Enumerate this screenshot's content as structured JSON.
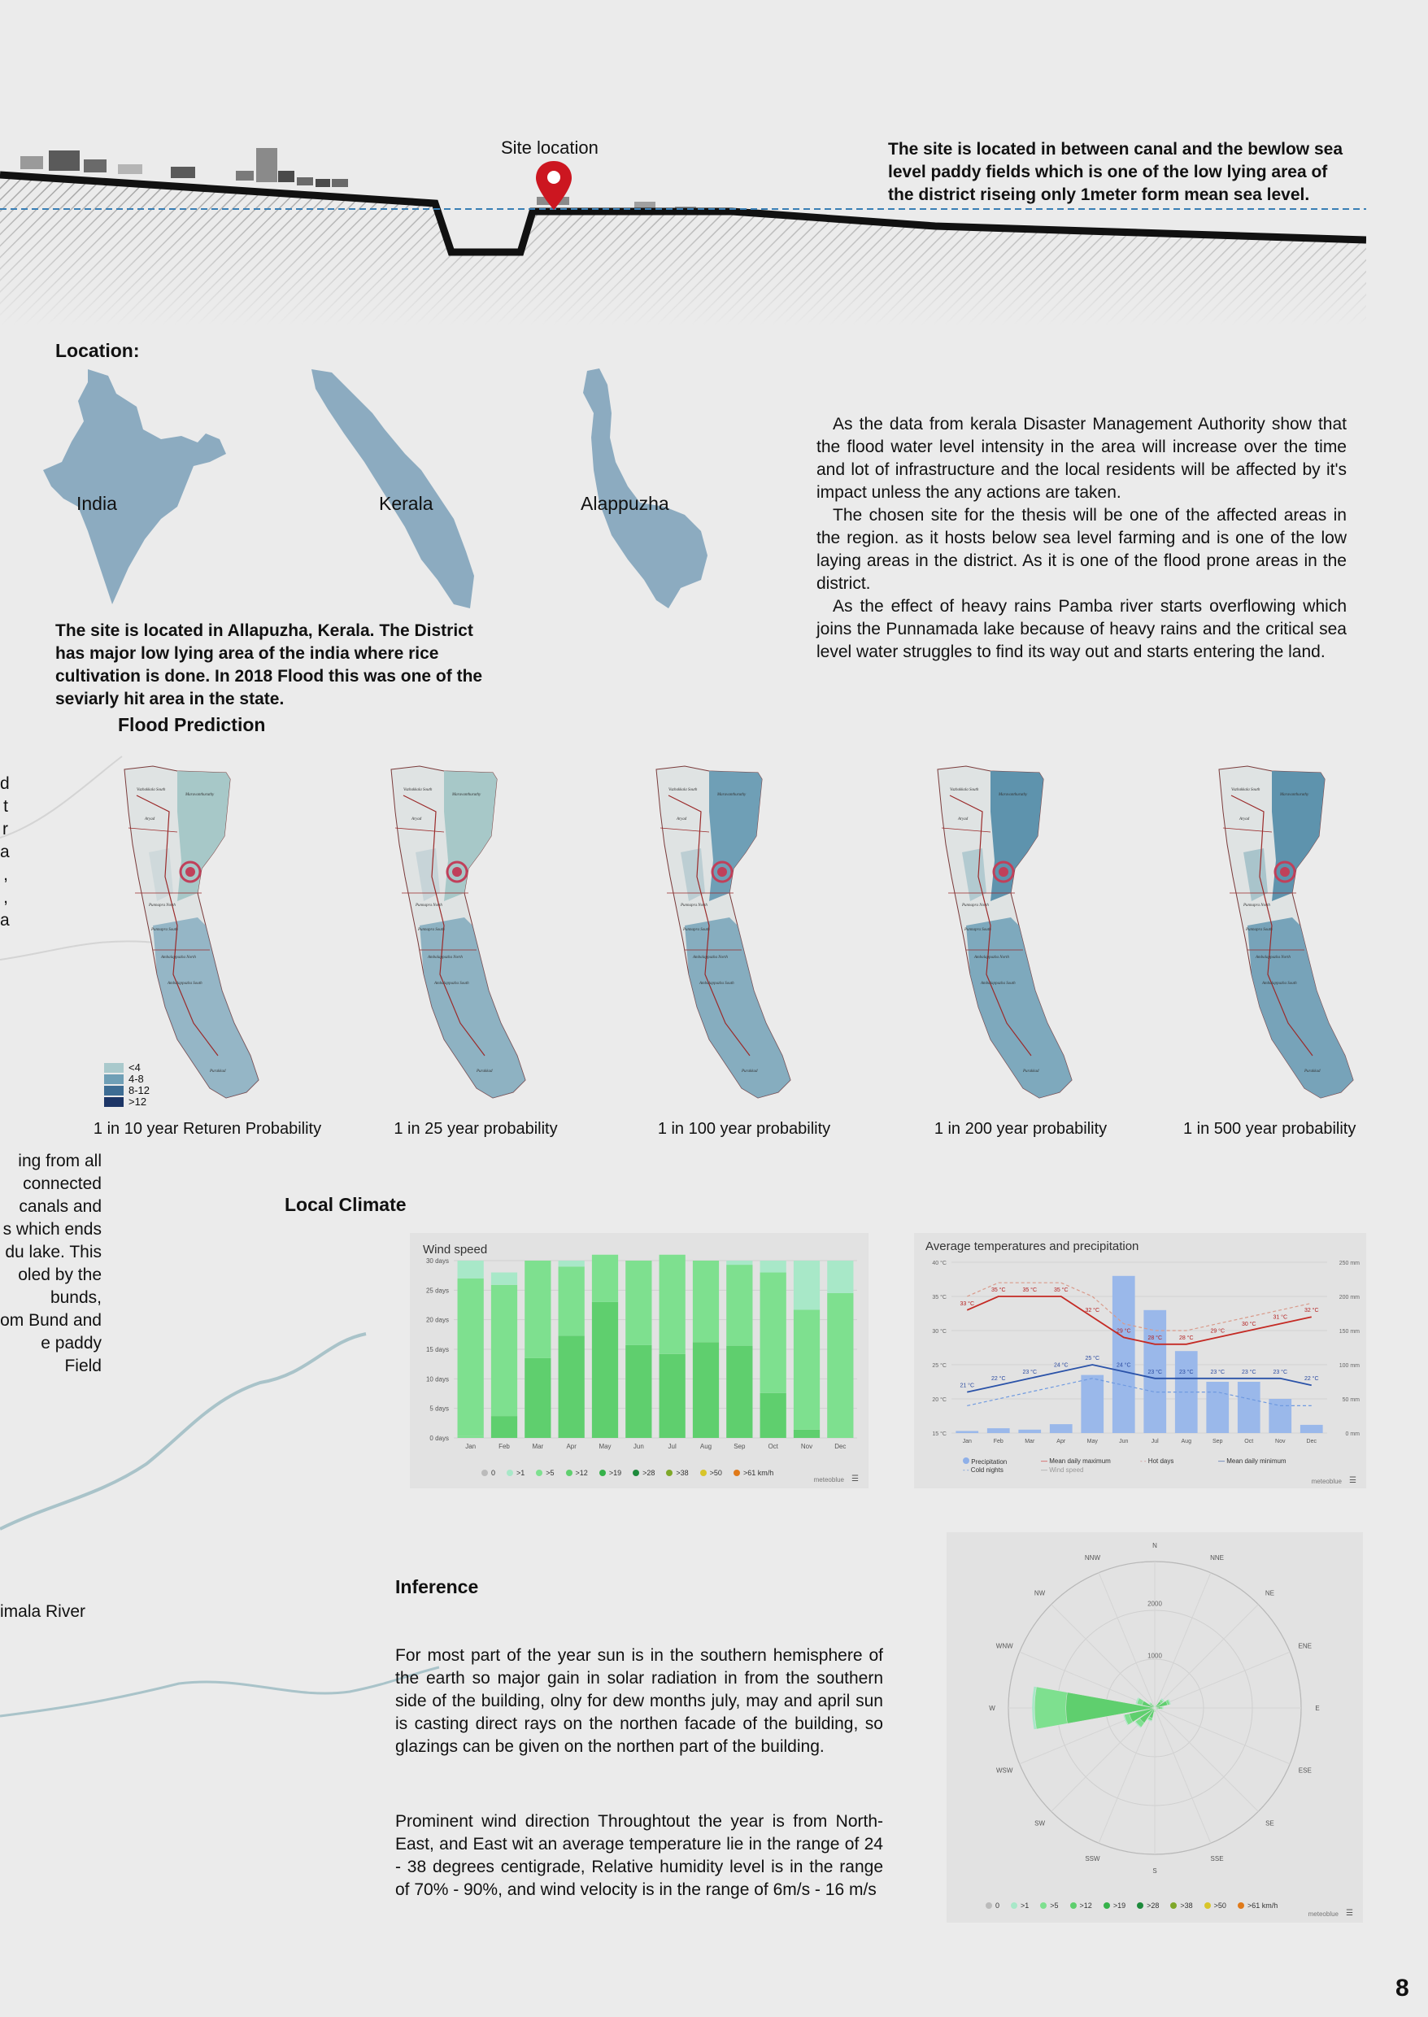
{
  "section": {
    "site_location_label": "Site location",
    "site_description": "The site is located in between canal and the bewlow sea level paddy fields which is one of the low lying area of the district riseing only 1meter form mean sea level."
  },
  "location": {
    "heading": "Location:",
    "maps": [
      "India",
      "Kerala",
      "Alappuzha"
    ],
    "summary": "The site is located in Allapuzha, Kerala. The District has major low lying area of the india where rice cultivation is done. In 2018 Flood this was one of the seviarly hit area in the state.",
    "paragraphs": [
      "As the data from kerala Disaster Management Authority show that the flood water level intensity in the area will increase over the time and lot of infrastructure and the local residents will be affected by it's impact unless the any actions are taken.",
      "The chosen site for the thesis will be one of the affected areas in the region. as it hosts below sea level farming and is one of the low laying areas in the district. As it is one of the flood prone areas in the district.",
      "As the effect of heavy rains Pamba river starts overflowing which joins the Punnamada lake because of heavy rains and the critical sea level water struggles to find its way out and starts entering the land."
    ]
  },
  "flood": {
    "heading": "Flood Prediction",
    "legend": [
      "<4",
      "4-8",
      "8-12",
      ">12"
    ],
    "legend_colors": [
      "#a9c9cc",
      "#6f9fb6",
      "#3d6c93",
      "#1c3566"
    ],
    "captions": [
      "1 in 10 year Returen Probability",
      "1 in 25 year probability",
      "1 in 100 year probability",
      "1 in 200 year probability",
      "1 in 500 year probability"
    ],
    "place_labels": [
      "Vazhakkala South",
      "Maravanthuruthy",
      "Aryad",
      "Punnapra North",
      "Punnapra South",
      "Ambalappuzha North",
      "Ambalappuzha South",
      "Purakkad"
    ]
  },
  "left_fragments": [
    "d",
    "t",
    "r",
    "a",
    ",",
    ",",
    "a",
    "ing from all",
    "connected",
    "canals and",
    "s which ends",
    "du lake. This",
    "oled by the",
    "bunds,",
    "om Bund and",
    "e paddy Field",
    "imala River"
  ],
  "climate": {
    "heading": "Local Climate"
  },
  "inference": {
    "heading": "Inference",
    "p1": "For most part of the year sun is in the southern hemisphere of the earth so major gain in solar radiation in from the southern side of the building, olny for dew months july, may and april sun is casting direct rays on the northen facade of the building, so glazings can be given on the northen part of the building.",
    "p2": "Prominent wind direction Throughtout the year is from North-East, and East wit an average temperature lie in the range of 24 - 38 degrees centigrade, Relative humidity level is in the range of 70% - 90%, and wind velocity is in the range of 6m/s - 16 m/s"
  },
  "page_number": "8",
  "chart_data": [
    {
      "type": "bar",
      "title": "Wind speed",
      "categories": [
        "Jan",
        "Feb",
        "Mar",
        "Apr",
        "May",
        "Jun",
        "Jul",
        "Aug",
        "Sep",
        "Oct",
        "Nov",
        "Dec"
      ],
      "y_ticks": [
        "0 days",
        "5 days",
        "10 days",
        "15 days",
        "20 days",
        "25 days",
        "30 days"
      ],
      "ylim": [
        0,
        30
      ],
      "series": [
        {
          "name": ">5",
          "color": "#7ee08f",
          "values": [
            0.3,
            0,
            0,
            0,
            0,
            0,
            0,
            0,
            0,
            0,
            0,
            0
          ]
        },
        {
          "name": ">12",
          "color": "#5fcf6e",
          "values": [
            0,
            3.7,
            13.5,
            17.3,
            23,
            15.7,
            14.2,
            16.2,
            15.6,
            7.6,
            1.4,
            0
          ]
        },
        {
          "name": ">5",
          "color": "#7ee08f",
          "values": [
            26.7,
            22.2,
            16.5,
            11.7,
            8,
            14.3,
            16.8,
            13.8,
            13.7,
            20.4,
            20.3,
            24.5
          ]
        },
        {
          "name": ">1",
          "color": "#a8e8c8",
          "values": [
            3,
            2.1,
            0,
            1,
            0,
            0,
            0,
            0,
            0.7,
            2,
            8.3,
            5.5
          ]
        }
      ],
      "legend": [
        "0",
        ">1",
        ">5",
        ">12",
        ">19",
        ">28",
        ">38",
        ">50",
        ">61 km/h"
      ],
      "legend_colors": [
        "#bbbbbb",
        "#a8e8c8",
        "#7ee08f",
        "#5fcf6e",
        "#36b24a",
        "#1e8a3c",
        "#7fa82a",
        "#d8c52a",
        "#e07a1a"
      ],
      "credit": "meteoblue"
    },
    {
      "type": "bar",
      "title": "Average temperatures and precipitation",
      "categories": [
        "Jan",
        "Feb",
        "Mar",
        "Apr",
        "May",
        "Jun",
        "Jul",
        "Aug",
        "Sep",
        "Oct",
        "Nov",
        "Dec"
      ],
      "y_left_ticks": [
        "15 °C",
        "20 °C",
        "25 °C",
        "30 °C",
        "35 °C",
        "40 °C"
      ],
      "y_right_ticks": [
        "0 mm",
        "50 mm",
        "100 mm",
        "150 mm",
        "200 mm",
        "250 mm"
      ],
      "ylim_left": [
        15,
        40
      ],
      "ylim_right": [
        0,
        250
      ],
      "precipitation_mm": [
        3,
        7,
        5,
        13,
        85,
        230,
        180,
        120,
        75,
        75,
        50,
        12
      ],
      "mean_daily_max": [
        33,
        35,
        35,
        35,
        32,
        29,
        28,
        28,
        29,
        30,
        31,
        32
      ],
      "mean_daily_min": [
        21,
        22,
        23,
        24,
        25,
        24,
        23,
        23,
        23,
        23,
        23,
        22
      ],
      "hot_days": [
        35,
        37,
        37,
        37,
        35,
        31,
        30,
        30,
        31,
        32,
        33,
        34
      ],
      "cold_nights": [
        19,
        20,
        21,
        22,
        23,
        22,
        21,
        21,
        21,
        20,
        19,
        19
      ],
      "max_labels": [
        "33 °C",
        "35 °C",
        "35 °C",
        "35 °C",
        "32 °C",
        "29 °C",
        "28 °C",
        "28 °C",
        "29 °C",
        "30 °C",
        "31 °C",
        "32 °C"
      ],
      "min_labels": [
        "21 °C",
        "22 °C",
        "23 °C",
        "24 °C",
        "25 °C",
        "24 °C",
        "23 °C",
        "23 °C",
        "23 °C",
        "23 °C",
        "23 °C",
        "22 °C"
      ],
      "legend": [
        "Precipitation",
        "Mean daily maximum",
        "Hot days",
        "Mean daily minimum",
        "Cold nights",
        "Wind speed"
      ],
      "credit": "meteoblue"
    },
    {
      "type": "wind-rose",
      "directions": [
        "N",
        "NNE",
        "NE",
        "ENE",
        "E",
        "ESE",
        "SE",
        "SSE",
        "S",
        "SSW",
        "SW",
        "WSW",
        "W",
        "WNW",
        "NW",
        "NNW"
      ],
      "ring_labels": [
        "1000",
        "2000"
      ],
      "rmax": 2800,
      "series": [
        {
          "name": ">12",
          "color": "#5fcf6e",
          "values": [
            20,
            40,
            150,
            250,
            120,
            40,
            20,
            30,
            60,
            200,
            350,
            500,
            1700,
            250,
            80,
            40
          ]
        },
        {
          "name": ">5",
          "color": "#7ee08f",
          "values": [
            30,
            60,
            200,
            300,
            150,
            60,
            30,
            40,
            80,
            250,
            450,
            600,
            2300,
            350,
            120,
            60
          ]
        },
        {
          "name": ">1",
          "color": "#a8e8c8",
          "values": [
            40,
            70,
            230,
            320,
            170,
            70,
            40,
            50,
            90,
            270,
            470,
            620,
            2350,
            380,
            140,
            70
          ]
        }
      ],
      "legend": [
        "0",
        ">1",
        ">5",
        ">12",
        ">19",
        ">28",
        ">38",
        ">50",
        ">61 km/h"
      ],
      "legend_colors": [
        "#bbbbbb",
        "#a8e8c8",
        "#7ee08f",
        "#5fcf6e",
        "#36b24a",
        "#1e8a3c",
        "#7fa82a",
        "#d8c52a",
        "#e07a1a"
      ],
      "credit": "meteoblue"
    }
  ]
}
